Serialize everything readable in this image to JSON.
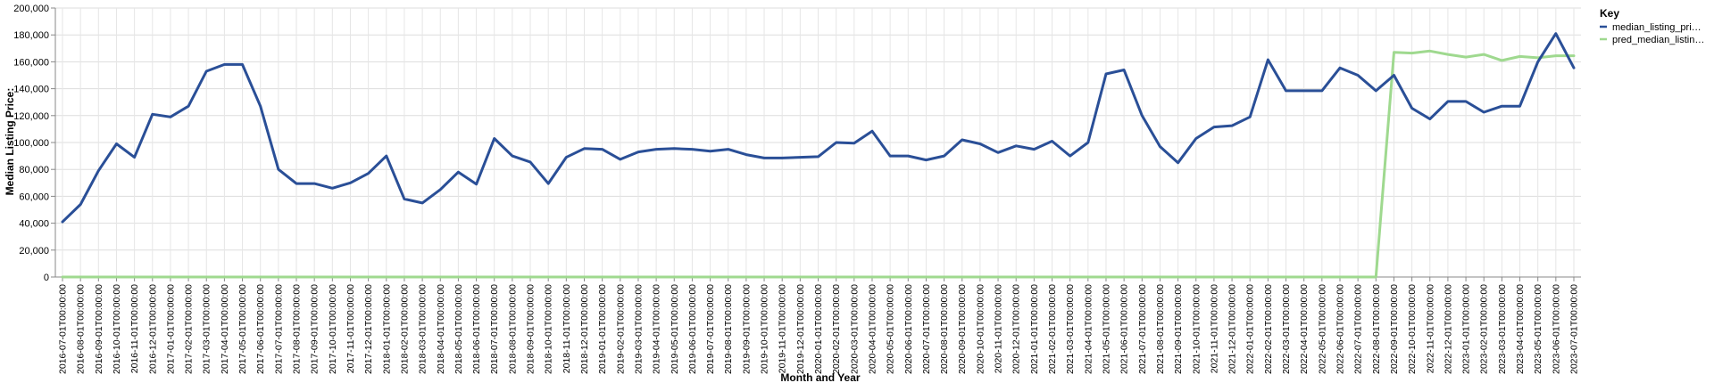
{
  "chart_data": {
    "type": "line",
    "title": "",
    "xlabel": "Month and Year",
    "ylabel": "Median Listing Price:",
    "ylim": [
      0,
      200000
    ],
    "yticks": [
      0,
      20000,
      40000,
      60000,
      80000,
      100000,
      120000,
      140000,
      160000,
      180000,
      200000
    ],
    "ytick_labels": [
      "0",
      "20,000",
      "40,000",
      "60,000",
      "80,000",
      "100,000",
      "120,000",
      "140,000",
      "160,000",
      "180,000",
      "200,000"
    ],
    "grid": true,
    "legend": {
      "title": "Key",
      "position": "right",
      "entries": [
        "median_listing_pri…",
        "pred_median_listin…"
      ]
    },
    "x": [
      "2016-07-01T00:00:00",
      "2016-08-01T00:00:00",
      "2016-09-01T00:00:00",
      "2016-10-01T00:00:00",
      "2016-11-01T00:00:00",
      "2016-12-01T00:00:00",
      "2017-01-01T00:00:00",
      "2017-02-01T00:00:00",
      "2017-03-01T00:00:00",
      "2017-04-01T00:00:00",
      "2017-05-01T00:00:00",
      "2017-06-01T00:00:00",
      "2017-07-01T00:00:00",
      "2017-08-01T00:00:00",
      "2017-09-01T00:00:00",
      "2017-10-01T00:00:00",
      "2017-11-01T00:00:00",
      "2017-12-01T00:00:00",
      "2018-01-01T00:00:00",
      "2018-02-01T00:00:00",
      "2018-03-01T00:00:00",
      "2018-04-01T00:00:00",
      "2018-05-01T00:00:00",
      "2018-06-01T00:00:00",
      "2018-07-01T00:00:00",
      "2018-08-01T00:00:00",
      "2018-09-01T00:00:00",
      "2018-10-01T00:00:00",
      "2018-11-01T00:00:00",
      "2018-12-01T00:00:00",
      "2019-01-01T00:00:00",
      "2019-02-01T00:00:00",
      "2019-03-01T00:00:00",
      "2019-04-01T00:00:00",
      "2019-05-01T00:00:00",
      "2019-06-01T00:00:00",
      "2019-07-01T00:00:00",
      "2019-08-01T00:00:00",
      "2019-09-01T00:00:00",
      "2019-10-01T00:00:00",
      "2019-11-01T00:00:00",
      "2019-12-01T00:00:00",
      "2020-01-01T00:00:00",
      "2020-02-01T00:00:00",
      "2020-03-01T00:00:00",
      "2020-04-01T00:00:00",
      "2020-05-01T00:00:00",
      "2020-06-01T00:00:00",
      "2020-07-01T00:00:00",
      "2020-08-01T00:00:00",
      "2020-09-01T00:00:00",
      "2020-10-01T00:00:00",
      "2020-11-01T00:00:00",
      "2020-12-01T00:00:00",
      "2021-01-01T00:00:00",
      "2021-02-01T00:00:00",
      "2021-03-01T00:00:00",
      "2021-04-01T00:00:00",
      "2021-05-01T00:00:00",
      "2021-06-01T00:00:00",
      "2021-07-01T00:00:00",
      "2021-08-01T00:00:00",
      "2021-09-01T00:00:00",
      "2021-10-01T00:00:00",
      "2021-11-01T00:00:00",
      "2021-12-01T00:00:00",
      "2022-01-01T00:00:00",
      "2022-02-01T00:00:00",
      "2022-03-01T00:00:00",
      "2022-04-01T00:00:00",
      "2022-05-01T00:00:00",
      "2022-06-01T00:00:00",
      "2022-07-01T00:00:00",
      "2022-08-01T00:00:00",
      "2022-09-01T00:00:00",
      "2022-10-01T00:00:00",
      "2022-11-01T00:00:00",
      "2022-12-01T00:00:00",
      "2023-01-01T00:00:00",
      "2023-02-01T00:00:00",
      "2023-03-01T00:00:00",
      "2023-04-01T00:00:00",
      "2023-05-01T00:00:00",
      "2023-06-01T00:00:00",
      "2023-07-01T00:00:00"
    ],
    "series": [
      {
        "name": "median_listing_pri…",
        "color": "#2a4f97",
        "values": [
          41000,
          54000,
          79000,
          99000,
          89000,
          121000,
          119000,
          127000,
          153000,
          158000,
          158000,
          127000,
          80000,
          69500,
          69500,
          66000,
          70000,
          77000,
          90000,
          58000,
          55000,
          65000,
          78000,
          69000,
          103000,
          90000,
          85500,
          69500,
          89000,
          95500,
          95000,
          87500,
          93000,
          95000,
          95500,
          95000,
          93500,
          95000,
          91000,
          88500,
          88500,
          89000,
          89500,
          100000,
          99500,
          108500,
          90000,
          90000,
          87000,
          90000,
          102000,
          99000,
          92500,
          97500,
          95000,
          101000,
          90000,
          100000,
          151000,
          154000,
          120000,
          97000,
          85000,
          103000,
          111500,
          112500,
          119000,
          161500,
          138500,
          138500,
          138500,
          155500,
          150000,
          138500,
          150000,
          125500,
          117500,
          130500,
          130500,
          122500,
          127000,
          127000,
          160000,
          181000,
          155500
        ]
      },
      {
        "name": "pred_median_listin…",
        "color": "#9fd98f",
        "values": [
          0,
          0,
          0,
          0,
          0,
          0,
          0,
          0,
          0,
          0,
          0,
          0,
          0,
          0,
          0,
          0,
          0,
          0,
          0,
          0,
          0,
          0,
          0,
          0,
          0,
          0,
          0,
          0,
          0,
          0,
          0,
          0,
          0,
          0,
          0,
          0,
          0,
          0,
          0,
          0,
          0,
          0,
          0,
          0,
          0,
          0,
          0,
          0,
          0,
          0,
          0,
          0,
          0,
          0,
          0,
          0,
          0,
          0,
          0,
          0,
          0,
          0,
          0,
          0,
          0,
          0,
          0,
          0,
          0,
          0,
          0,
          0,
          0,
          0,
          167000,
          166500,
          168000,
          165500,
          163500,
          165500,
          161000,
          164000,
          163000,
          164500,
          164500
        ]
      }
    ]
  }
}
